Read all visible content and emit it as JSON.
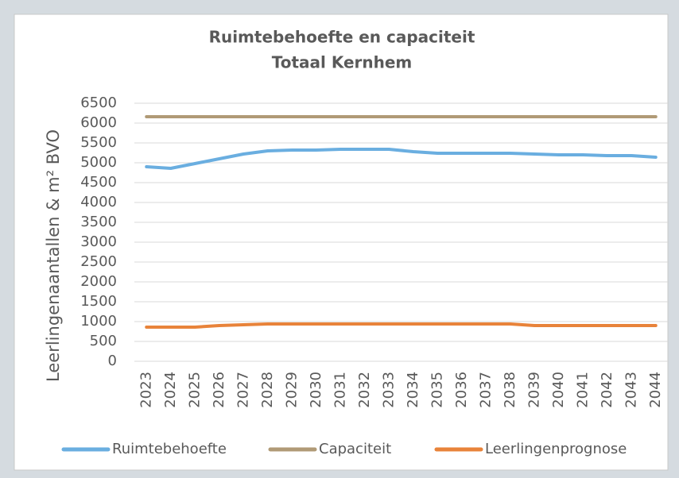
{
  "chart_data": {
    "type": "line",
    "title": "Ruimtebehoefte en capaciteit",
    "subtitle": "Totaal Kernhem",
    "y_label": "Leerlingenaantallen & m² BVO",
    "categories": [
      "2023",
      "2024",
      "2025",
      "2026",
      "2027",
      "2028",
      "2029",
      "2030",
      "2031",
      "2032",
      "2033",
      "2034",
      "2035",
      "2036",
      "2037",
      "2038",
      "2039",
      "2040",
      "2041",
      "2042",
      "2043",
      "2044"
    ],
    "series": [
      {
        "name": "Ruimtebehoefte",
        "color": "#6aaee0",
        "values": [
          4900,
          4860,
          4980,
          5100,
          5220,
          5300,
          5320,
          5320,
          5340,
          5340,
          5340,
          5280,
          5240,
          5240,
          5240,
          5240,
          5220,
          5200,
          5200,
          5180,
          5180,
          5140
        ]
      },
      {
        "name": "Capaciteit",
        "color": "#b09a76",
        "values": [
          6160,
          6160,
          6160,
          6160,
          6160,
          6160,
          6160,
          6160,
          6160,
          6160,
          6160,
          6160,
          6160,
          6160,
          6160,
          6160,
          6160,
          6160,
          6160,
          6160,
          6160,
          6160
        ]
      },
      {
        "name": "Leerlingenprognose",
        "color": "#e8833a",
        "values": [
          860,
          860,
          860,
          900,
          920,
          940,
          940,
          940,
          940,
          940,
          940,
          940,
          940,
          940,
          940,
          940,
          900,
          900,
          900,
          900,
          900,
          900
        ]
      }
    ],
    "ylim": [
      0,
      6500
    ],
    "yticks": [
      0,
      500,
      1000,
      1500,
      2000,
      2500,
      3000,
      3500,
      4000,
      4500,
      5000,
      5500,
      6000,
      6500
    ],
    "grid": true,
    "legend": "bottom"
  }
}
